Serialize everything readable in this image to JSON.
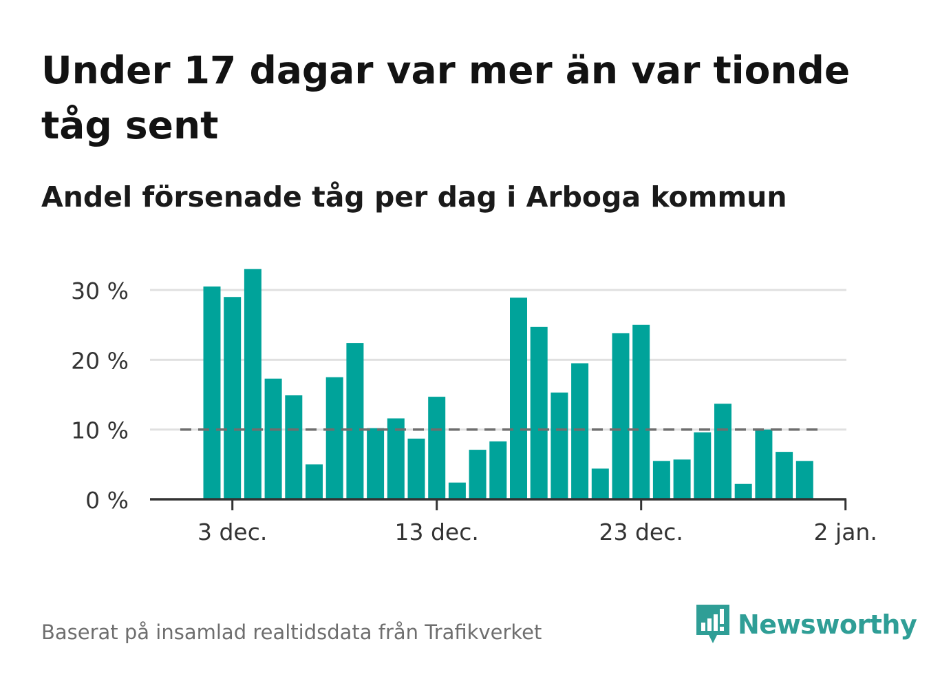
{
  "title": "Under 17 dagar var mer än var tionde tåg sent",
  "subtitle": "Andel försenade tåg per dag i Arboga kommun",
  "source": "Baserat på insamlad realtidsdata från Trafikverket",
  "brand": "Newsworthy",
  "colors": {
    "bar": "#00a39a",
    "reference_line": "#6e6e6e",
    "grid": "#e0e0e0",
    "axis": "#333333",
    "brand": "#2f9e96"
  },
  "chart_data": {
    "type": "bar",
    "categories": [
      "2 dec.",
      "3 dec.",
      "4 dec.",
      "5 dec.",
      "6 dec.",
      "7 dec.",
      "8 dec.",
      "9 dec.",
      "10 dec.",
      "11 dec.",
      "12 dec.",
      "13 dec.",
      "14 dec.",
      "15 dec.",
      "16 dec.",
      "17 dec.",
      "18 dec.",
      "19 dec.",
      "20 dec.",
      "21 dec.",
      "22 dec.",
      "23 dec.",
      "24 dec.",
      "25 dec.",
      "26 dec.",
      "27 dec.",
      "28 dec.",
      "29 dec.",
      "30 dec.",
      "31 dec."
    ],
    "values": [
      30.5,
      29.0,
      33.0,
      17.3,
      14.9,
      5.0,
      17.5,
      22.4,
      10.2,
      11.6,
      8.7,
      14.7,
      2.4,
      7.1,
      8.3,
      28.9,
      24.7,
      15.3,
      19.5,
      4.4,
      23.8,
      25.0,
      5.5,
      5.7,
      9.6,
      13.7,
      2.2,
      10.0,
      6.8,
      5.5
    ],
    "reference_line": {
      "value": 10,
      "style": "dashed"
    },
    "ylim": [
      0,
      33
    ],
    "yticks": [
      0,
      10,
      20,
      30
    ],
    "ytick_labels": [
      "0 %",
      "10 %",
      "20 %",
      "30 %"
    ],
    "xticks": [
      "3 dec.",
      "13 dec.",
      "23 dec.",
      "2 jan."
    ],
    "xlabel": "",
    "ylabel": "",
    "grid": true
  }
}
